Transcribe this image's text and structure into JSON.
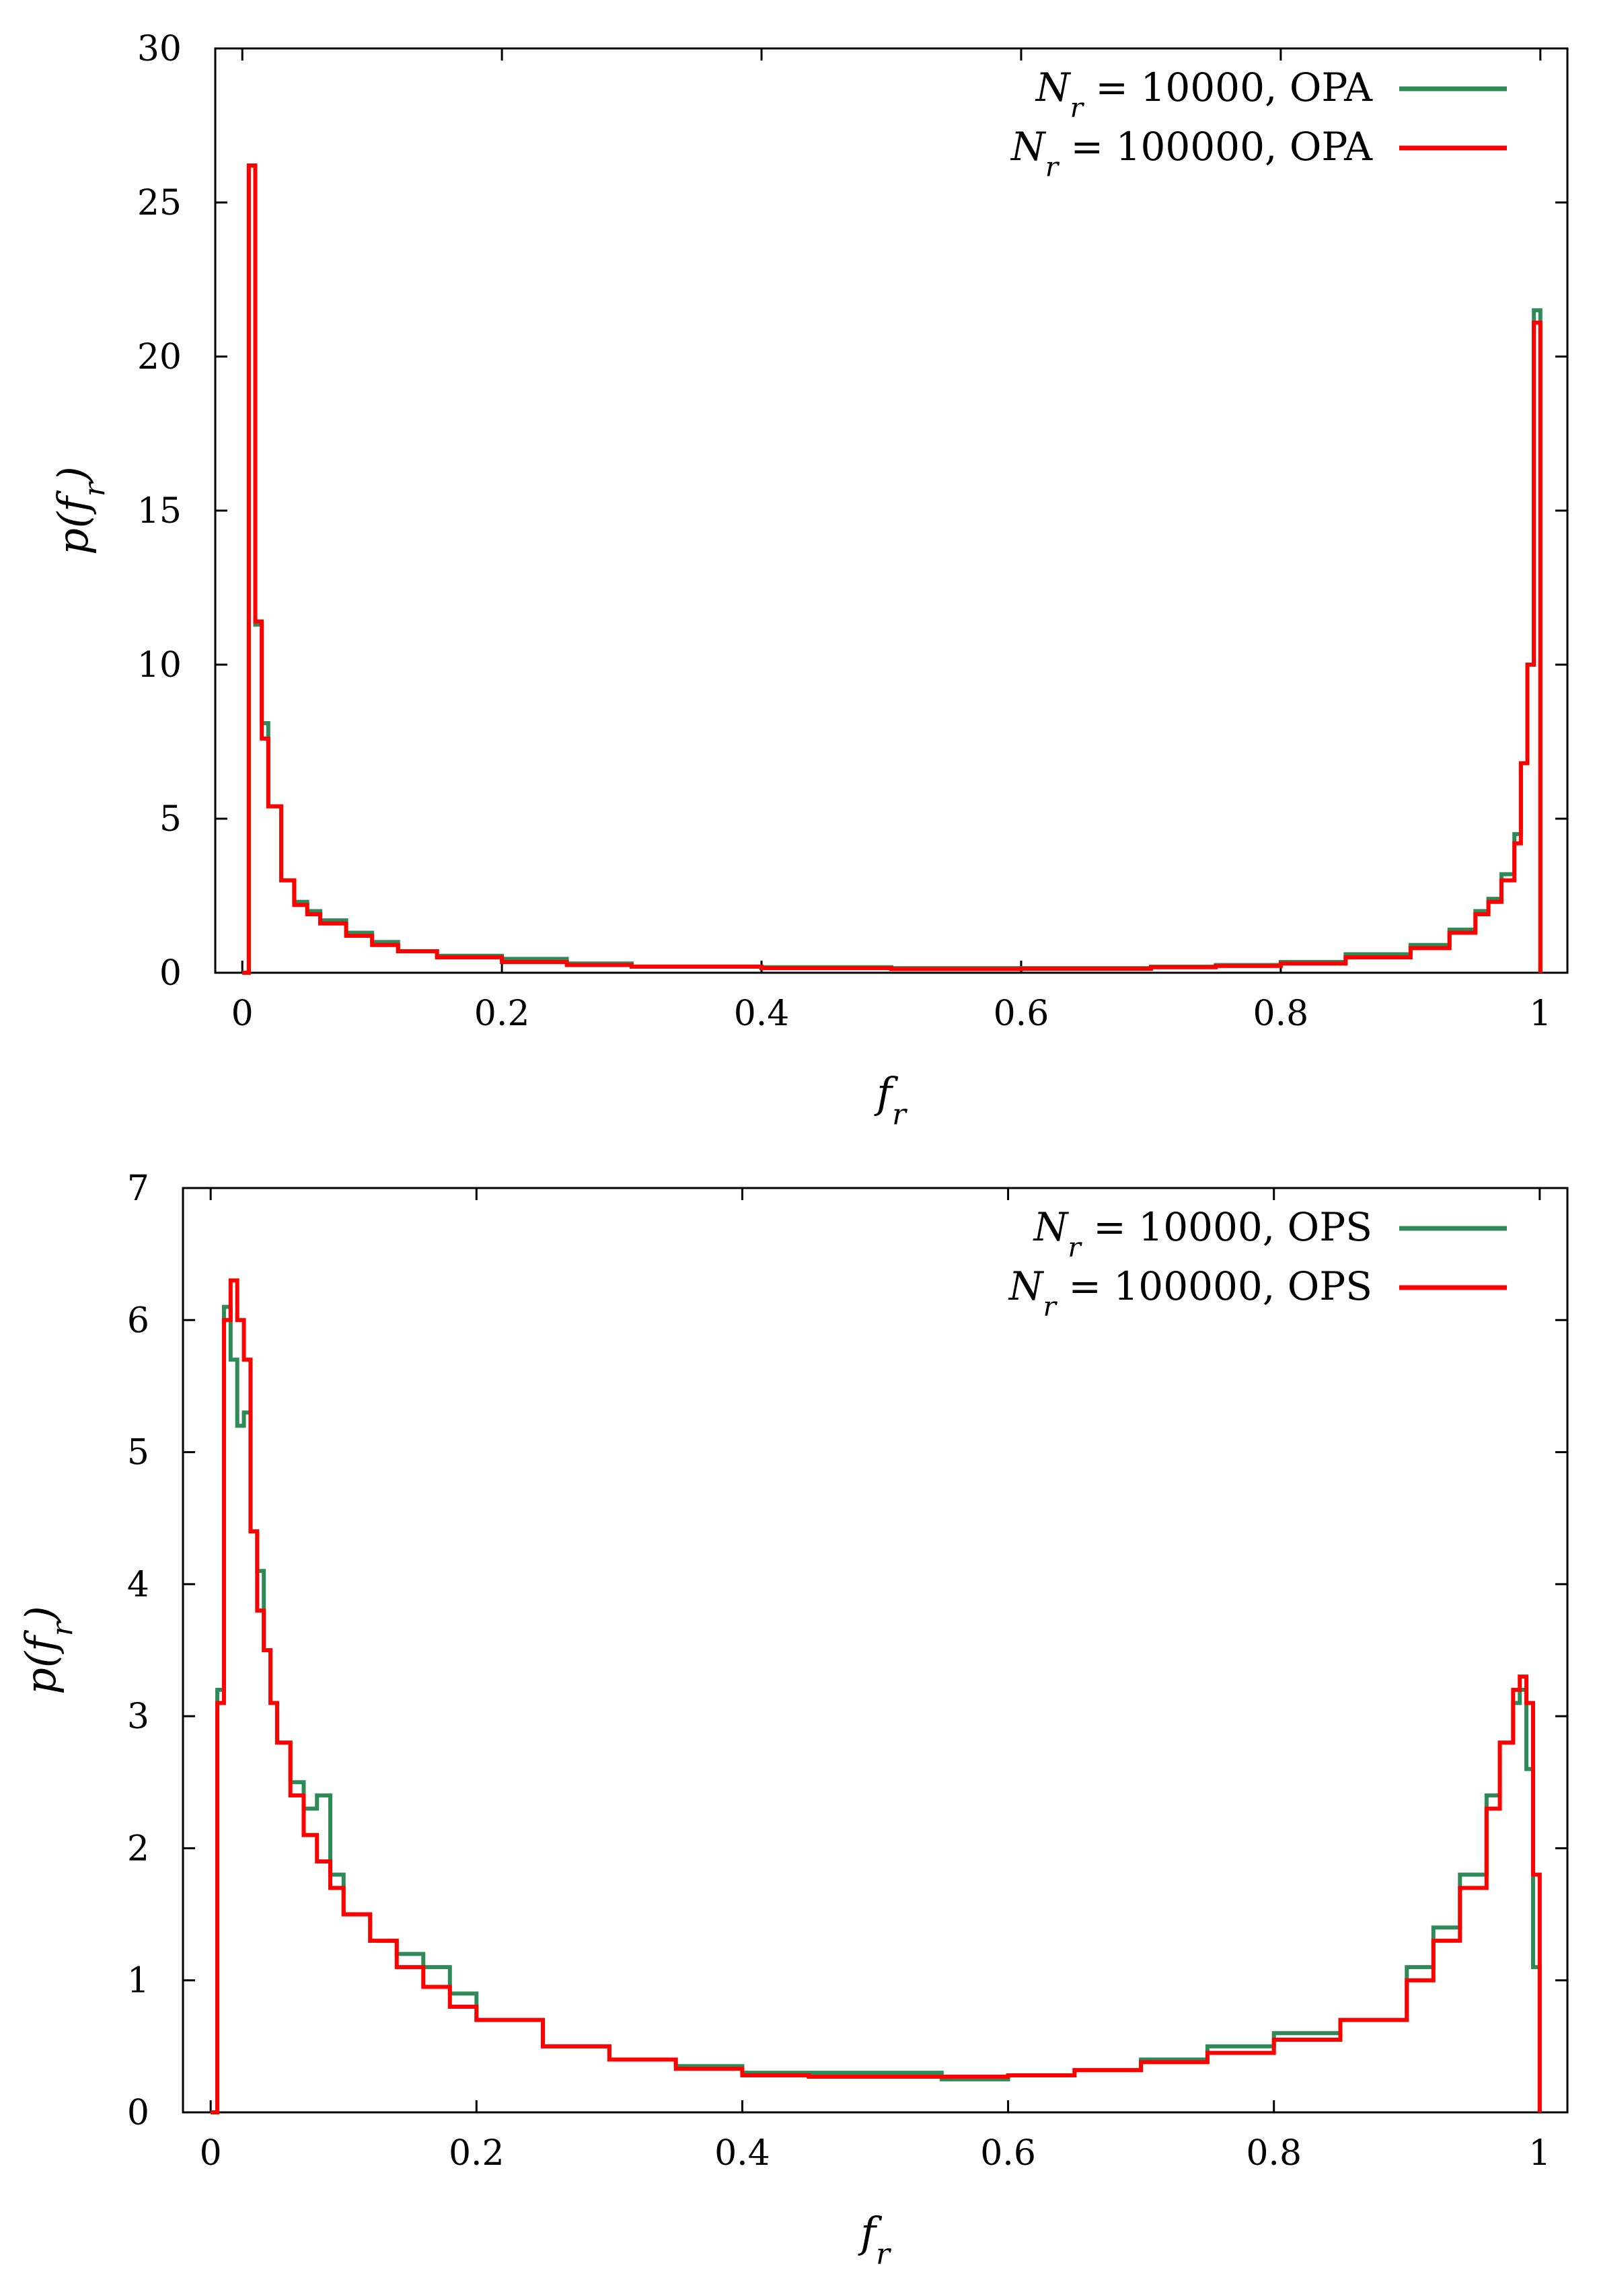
{
  "chart_data": [
    {
      "type": "line",
      "xlabel": "f_r",
      "ylabel": "p(f_r)",
      "xlim": [
        0,
        1
      ],
      "ylim": [
        0,
        30
      ],
      "xticks": [
        "0",
        "0.2",
        "0.4",
        "0.6",
        "0.8",
        "1"
      ],
      "yticks": [
        "0",
        "5",
        "10",
        "15",
        "20",
        "25",
        "30"
      ],
      "legend_position": "top-right",
      "grid": false,
      "series": [
        {
          "name": "N_r = 10000, OPA",
          "color": "#2e8b57",
          "x": [
            0,
            0.005,
            0.01,
            0.015,
            0.02,
            0.03,
            0.04,
            0.05,
            0.06,
            0.08,
            0.1,
            0.12,
            0.15,
            0.2,
            0.25,
            0.3,
            0.4,
            0.5,
            0.6,
            0.7,
            0.75,
            0.8,
            0.85,
            0.9,
            0.93,
            0.95,
            0.96,
            0.97,
            0.98,
            0.985,
            0.99,
            0.995,
            1.0
          ],
          "y": [
            0,
            26.2,
            11.3,
            8.1,
            5.4,
            3.0,
            2.3,
            2.0,
            1.7,
            1.3,
            1.0,
            0.7,
            0.55,
            0.45,
            0.3,
            0.2,
            0.18,
            0.15,
            0.15,
            0.2,
            0.25,
            0.35,
            0.6,
            0.9,
            1.4,
            2.0,
            2.4,
            3.2,
            4.5,
            6.8,
            10.0,
            21.5,
            0
          ]
        },
        {
          "name": "N_r = 100000, OPA",
          "color": "#ff0000",
          "x": [
            0,
            0.005,
            0.01,
            0.015,
            0.02,
            0.03,
            0.04,
            0.05,
            0.06,
            0.08,
            0.1,
            0.12,
            0.15,
            0.2,
            0.25,
            0.3,
            0.4,
            0.5,
            0.6,
            0.7,
            0.75,
            0.8,
            0.85,
            0.9,
            0.93,
            0.95,
            0.96,
            0.97,
            0.98,
            0.985,
            0.99,
            0.995,
            1.0
          ],
          "y": [
            0,
            26.2,
            11.4,
            7.6,
            5.4,
            3.0,
            2.2,
            1.9,
            1.6,
            1.2,
            0.9,
            0.7,
            0.5,
            0.35,
            0.25,
            0.2,
            0.15,
            0.12,
            0.13,
            0.18,
            0.22,
            0.3,
            0.5,
            0.8,
            1.3,
            1.9,
            2.3,
            3.0,
            4.2,
            6.8,
            10.0,
            21.1,
            0
          ]
        }
      ]
    },
    {
      "type": "line",
      "xlabel": "f_r",
      "ylabel": "p(f_r)",
      "xlim": [
        0,
        1
      ],
      "ylim": [
        0,
        7
      ],
      "xticks": [
        "0",
        "0.2",
        "0.4",
        "0.6",
        "0.8",
        "1"
      ],
      "yticks": [
        "0",
        "1",
        "2",
        "3",
        "4",
        "5",
        "6",
        "7"
      ],
      "legend_position": "top-right",
      "grid": false,
      "series": [
        {
          "name": "N_r = 10000, OPS",
          "color": "#2e8b57",
          "x": [
            0,
            0.005,
            0.01,
            0.015,
            0.02,
            0.025,
            0.03,
            0.035,
            0.04,
            0.045,
            0.05,
            0.06,
            0.07,
            0.08,
            0.09,
            0.1,
            0.12,
            0.14,
            0.16,
            0.18,
            0.2,
            0.25,
            0.3,
            0.35,
            0.4,
            0.45,
            0.5,
            0.55,
            0.6,
            0.65,
            0.7,
            0.75,
            0.8,
            0.85,
            0.9,
            0.92,
            0.94,
            0.96,
            0.97,
            0.98,
            0.985,
            0.99,
            0.995,
            1.0
          ],
          "y": [
            0,
            3.2,
            6.1,
            5.7,
            5.2,
            5.3,
            4.4,
            4.1,
            3.5,
            3.1,
            2.8,
            2.5,
            2.3,
            2.4,
            1.8,
            1.5,
            1.3,
            1.2,
            1.1,
            0.9,
            0.7,
            0.5,
            0.4,
            0.35,
            0.3,
            0.3,
            0.3,
            0.25,
            0.28,
            0.32,
            0.4,
            0.5,
            0.6,
            0.7,
            1.1,
            1.4,
            1.8,
            2.4,
            2.8,
            3.1,
            3.2,
            2.6,
            1.1,
            0
          ]
        },
        {
          "name": "N_r = 100000, OPS",
          "color": "#ff0000",
          "x": [
            0,
            0.005,
            0.01,
            0.015,
            0.02,
            0.025,
            0.03,
            0.035,
            0.04,
            0.045,
            0.05,
            0.06,
            0.07,
            0.08,
            0.09,
            0.1,
            0.12,
            0.14,
            0.16,
            0.18,
            0.2,
            0.25,
            0.3,
            0.35,
            0.4,
            0.45,
            0.5,
            0.55,
            0.6,
            0.65,
            0.7,
            0.75,
            0.8,
            0.85,
            0.9,
            0.92,
            0.94,
            0.96,
            0.97,
            0.98,
            0.985,
            0.99,
            0.995,
            1.0
          ],
          "y": [
            0,
            3.1,
            6.0,
            6.3,
            6.0,
            5.7,
            4.4,
            3.8,
            3.5,
            3.1,
            2.8,
            2.4,
            2.1,
            1.9,
            1.7,
            1.5,
            1.3,
            1.1,
            0.95,
            0.8,
            0.7,
            0.5,
            0.4,
            0.33,
            0.28,
            0.27,
            0.27,
            0.27,
            0.28,
            0.32,
            0.38,
            0.45,
            0.55,
            0.7,
            1.0,
            1.3,
            1.7,
            2.3,
            2.8,
            3.2,
            3.3,
            3.1,
            1.8,
            0
          ]
        }
      ]
    }
  ]
}
